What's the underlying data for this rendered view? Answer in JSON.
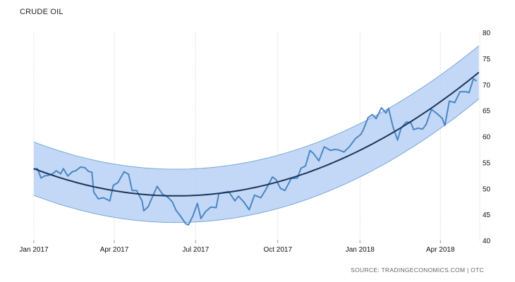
{
  "chart_data": {
    "type": "line",
    "title": "CRUDE OIL",
    "source": "SOURCE: TRADINGECONOMICS.COM | OTC",
    "xlabel": "",
    "ylabel": "",
    "xlim": [
      "2017-01-01",
      "2018-05-15"
    ],
    "ylim": [
      40,
      80
    ],
    "y_ticks": [
      40,
      45,
      50,
      55,
      60,
      65,
      70,
      75,
      80
    ],
    "x_ticks": [
      {
        "label": "Jan 2017",
        "date": "2017-01-01"
      },
      {
        "label": "Apr 2017",
        "date": "2017-04-01"
      },
      {
        "label": "Jul 2017",
        "date": "2017-07-01"
      },
      {
        "label": "Oct 2017",
        "date": "2017-10-01"
      },
      {
        "label": "Jan 2018",
        "date": "2018-01-01"
      },
      {
        "label": "Apr 2018",
        "date": "2018-04-01"
      }
    ],
    "grid": "vertical dotted",
    "y_axis_side": "right",
    "colors": {
      "price": "#4a86c5",
      "trend": "#1c3458",
      "band_fill": "#b8d1f4",
      "band_edge": "#7aa6dc",
      "grid": "#c8c8c8"
    },
    "price": [
      [
        "2017-01-01",
        53.7
      ],
      [
        "2017-01-05",
        53.8
      ],
      [
        "2017-01-09",
        52.0
      ],
      [
        "2017-01-13",
        52.4
      ],
      [
        "2017-01-17",
        52.5
      ],
      [
        "2017-01-22",
        52.8
      ],
      [
        "2017-01-26",
        53.4
      ],
      [
        "2017-01-31",
        52.8
      ],
      [
        "2017-02-03",
        53.8
      ],
      [
        "2017-02-08",
        52.4
      ],
      [
        "2017-02-13",
        53.2
      ],
      [
        "2017-02-17",
        53.4
      ],
      [
        "2017-02-22",
        54.1
      ],
      [
        "2017-02-27",
        54.0
      ],
      [
        "2017-03-03",
        53.3
      ],
      [
        "2017-03-07",
        53.1
      ],
      [
        "2017-03-09",
        49.3
      ],
      [
        "2017-03-14",
        48.0
      ],
      [
        "2017-03-20",
        48.2
      ],
      [
        "2017-03-27",
        47.6
      ],
      [
        "2017-03-31",
        50.6
      ],
      [
        "2017-04-05",
        51.1
      ],
      [
        "2017-04-12",
        53.2
      ],
      [
        "2017-04-17",
        52.7
      ],
      [
        "2017-04-21",
        49.6
      ],
      [
        "2017-04-26",
        49.6
      ],
      [
        "2017-05-02",
        47.6
      ],
      [
        "2017-05-04",
        45.7
      ],
      [
        "2017-05-09",
        46.5
      ],
      [
        "2017-05-15",
        48.9
      ],
      [
        "2017-05-19",
        50.4
      ],
      [
        "2017-05-25",
        48.9
      ],
      [
        "2017-05-31",
        48.3
      ],
      [
        "2017-06-05",
        47.4
      ],
      [
        "2017-06-09",
        45.8
      ],
      [
        "2017-06-14",
        44.7
      ],
      [
        "2017-06-20",
        43.2
      ],
      [
        "2017-06-23",
        43.0
      ],
      [
        "2017-06-28",
        44.7
      ],
      [
        "2017-07-03",
        47.1
      ],
      [
        "2017-07-07",
        44.2
      ],
      [
        "2017-07-12",
        45.5
      ],
      [
        "2017-07-18",
        46.4
      ],
      [
        "2017-07-24",
        46.3
      ],
      [
        "2017-07-27",
        49.0
      ],
      [
        "2017-08-01",
        49.2
      ],
      [
        "2017-08-07",
        49.4
      ],
      [
        "2017-08-14",
        47.6
      ],
      [
        "2017-08-18",
        48.5
      ],
      [
        "2017-08-24",
        47.4
      ],
      [
        "2017-08-30",
        45.9
      ],
      [
        "2017-09-05",
        48.7
      ],
      [
        "2017-09-12",
        48.2
      ],
      [
        "2017-09-18",
        49.9
      ],
      [
        "2017-09-25",
        52.2
      ],
      [
        "2017-09-29",
        51.7
      ],
      [
        "2017-10-04",
        50.0
      ],
      [
        "2017-10-09",
        49.6
      ],
      [
        "2017-10-16",
        51.9
      ],
      [
        "2017-10-23",
        52.0
      ],
      [
        "2017-10-27",
        53.9
      ],
      [
        "2017-11-01",
        54.3
      ],
      [
        "2017-11-06",
        57.3
      ],
      [
        "2017-11-10",
        56.7
      ],
      [
        "2017-11-16",
        55.3
      ],
      [
        "2017-11-22",
        58.0
      ],
      [
        "2017-11-29",
        57.3
      ],
      [
        "2017-12-04",
        57.5
      ],
      [
        "2017-12-08",
        57.4
      ],
      [
        "2017-12-14",
        57.0
      ],
      [
        "2017-12-20",
        58.0
      ],
      [
        "2017-12-27",
        59.6
      ],
      [
        "2018-01-02",
        60.4
      ],
      [
        "2018-01-05",
        61.4
      ],
      [
        "2018-01-10",
        63.6
      ],
      [
        "2018-01-15",
        64.2
      ],
      [
        "2018-01-19",
        63.4
      ],
      [
        "2018-01-25",
        65.5
      ],
      [
        "2018-01-30",
        64.5
      ],
      [
        "2018-02-02",
        65.4
      ],
      [
        "2018-02-07",
        61.8
      ],
      [
        "2018-02-12",
        59.3
      ],
      [
        "2018-02-16",
        61.6
      ],
      [
        "2018-02-22",
        62.8
      ],
      [
        "2018-02-27",
        62.6
      ],
      [
        "2018-03-02",
        61.3
      ],
      [
        "2018-03-07",
        61.6
      ],
      [
        "2018-03-12",
        61.4
      ],
      [
        "2018-03-16",
        62.3
      ],
      [
        "2018-03-22",
        65.2
      ],
      [
        "2018-03-28",
        64.4
      ],
      [
        "2018-04-03",
        63.5
      ],
      [
        "2018-04-06",
        62.1
      ],
      [
        "2018-04-11",
        66.8
      ],
      [
        "2018-04-17",
        66.5
      ],
      [
        "2018-04-23",
        68.6
      ],
      [
        "2018-04-30",
        68.6
      ],
      [
        "2018-05-03",
        68.4
      ],
      [
        "2018-05-08",
        71.1
      ],
      [
        "2018-05-11",
        70.7
      ]
    ]
  }
}
